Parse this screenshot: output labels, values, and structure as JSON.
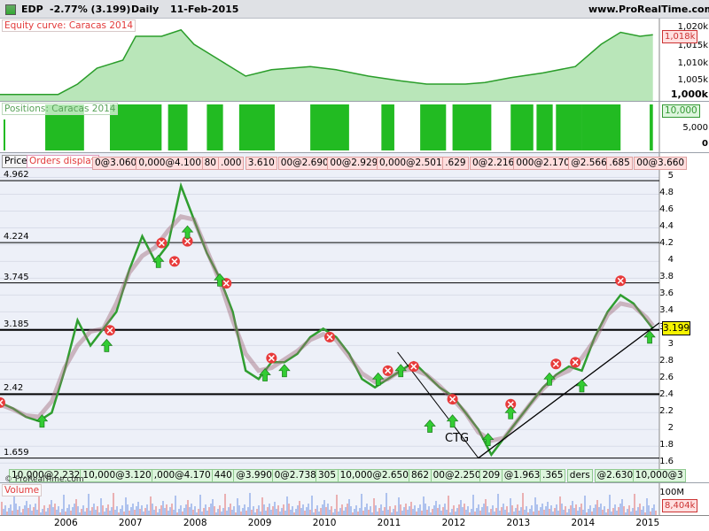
{
  "header": {
    "symbol": "EDP",
    "change": "-2.77% (3.199)",
    "period": "Daily",
    "date": "11-Feb-2015",
    "site": "www.ProRealTime.com"
  },
  "equity": {
    "label": "Equity curve: Caracas 2014",
    "y_ticks": [
      "1,020k",
      "1,015k",
      "1,010k",
      "1,005k",
      "1,000k"
    ],
    "last_value": "1,018k"
  },
  "positions": {
    "label": "Positions: Caracas 2014",
    "y_ticks": [
      "10,000",
      "5,000",
      "0"
    ]
  },
  "price": {
    "tab_price": "Price",
    "tab_orders": "Orders display",
    "y_ticks": [
      "5",
      "4.8",
      "4.6",
      "4.4",
      "4.2",
      "4",
      "3.8",
      "3.6",
      "3.4",
      "3.2",
      "3",
      "2.8",
      "2.6",
      "2.4",
      "2.2",
      "2",
      "1.8",
      "1.6"
    ],
    "levels": [
      "4.962",
      "4.224",
      "3.745",
      "3.185",
      "2.42",
      "1.659"
    ],
    "last_price": "3.199",
    "annotation": "CTG",
    "watermark": "© ProRealTime.com",
    "top_orders": [
      "0@3.060",
      "0,000@4.100",
      "80",
      ".000",
      "3.610",
      "00@2.690",
      "00@2.929",
      "0,000@2.501",
      ".629",
      "0@2.216",
      "000@2.170",
      "@2.566",
      ".685",
      "00@3.660"
    ],
    "bottom_orders": [
      "10,000@2.232",
      "10,000@3.120",
      ",000@4.170",
      "440",
      "@3.990",
      "0@2.738",
      "305",
      "10,000@2.650",
      "862",
      "00@2.250",
      "209",
      "@1.963",
      ".365",
      "ders",
      "@2.630",
      "10,000@3"
    ]
  },
  "volume": {
    "label": "Volume",
    "y_ticks": [
      "100M"
    ],
    "last_value": "8,404k"
  },
  "x_axis": {
    "years": [
      "2006",
      "2007",
      "2008",
      "2009",
      "2010",
      "2011",
      "2012",
      "2013",
      "2014",
      "2015"
    ]
  },
  "colors": {
    "red_marker": "#e83a3a",
    "green_arrow": "#33cc33",
    "fill_green": "#4cb54c",
    "position_green": "#22bb22"
  },
  "chart_data": {
    "type": "line",
    "title": "EDP -2.77% (3.199) Daily 11-Feb-2015",
    "x": [
      2005.0,
      2005.2,
      2005.4,
      2005.6,
      2005.8,
      2006.0,
      2006.2,
      2006.4,
      2006.6,
      2006.8,
      2007.0,
      2007.2,
      2007.4,
      2007.6,
      2007.8,
      2008.0,
      2008.2,
      2008.4,
      2008.6,
      2008.8,
      2009.0,
      2009.2,
      2009.4,
      2009.6,
      2009.8,
      2010.0,
      2010.2,
      2010.4,
      2010.6,
      2010.8,
      2011.0,
      2011.2,
      2011.4,
      2011.6,
      2011.8,
      2012.0,
      2012.2,
      2012.4,
      2012.6,
      2012.8,
      2013.0,
      2013.2,
      2013.4,
      2013.6,
      2013.8,
      2014.0,
      2014.2,
      2014.4,
      2014.6,
      2014.8,
      2015.0,
      2015.1
    ],
    "series": [
      {
        "values": [
          2.32,
          2.25,
          2.15,
          2.1,
          2.2,
          2.7,
          3.3,
          3.0,
          3.2,
          3.4,
          3.9,
          4.3,
          4.0,
          4.2,
          4.9,
          4.5,
          4.1,
          3.8,
          3.4,
          2.7,
          2.6,
          2.8,
          2.8,
          2.9,
          3.1,
          3.2,
          3.1,
          2.9,
          2.6,
          2.5,
          2.6,
          2.7,
          2.8,
          2.65,
          2.5,
          2.4,
          2.2,
          2.0,
          1.7,
          1.9,
          2.1,
          2.3,
          2.5,
          2.65,
          2.75,
          2.7,
          3.1,
          3.4,
          3.6,
          3.5,
          3.3,
          3.2
        ]
      }
    ],
    "ylim": [
      1.55,
      5.1
    ],
    "xlim": [
      2005.0,
      2015.2
    ],
    "horizontal_levels": [
      4.962,
      4.224,
      3.745,
      3.185,
      2.42,
      1.659
    ],
    "grid": true,
    "legend": "none"
  }
}
